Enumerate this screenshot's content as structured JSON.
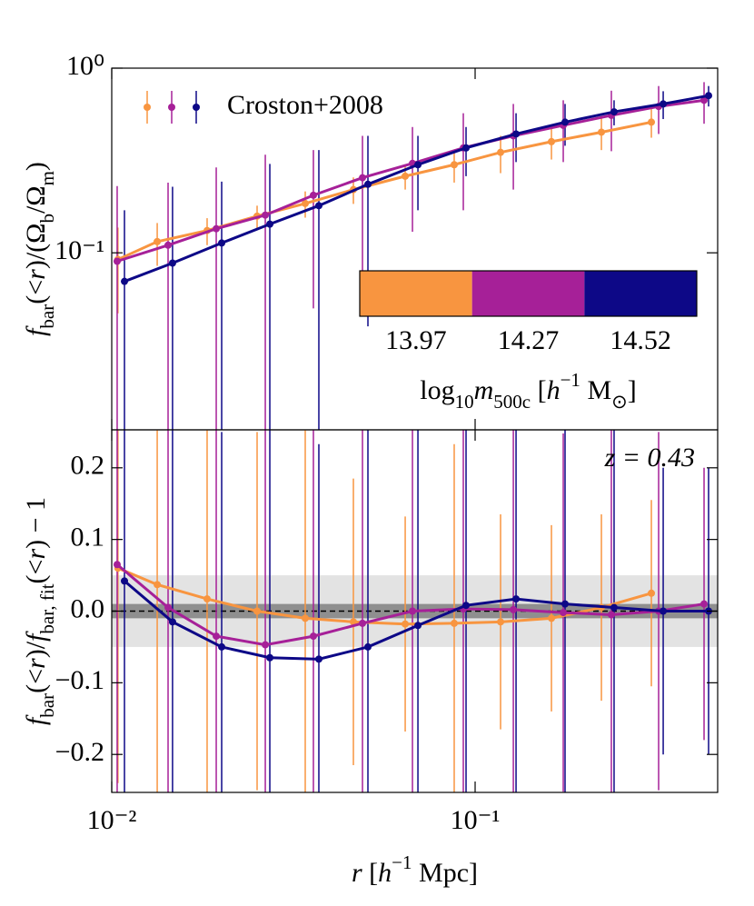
{
  "chart_data": [
    {
      "type": "line",
      "log_y": true,
      "log_x": true,
      "ylabel": [
        {
          "t": "f",
          "s": "i"
        },
        {
          "t": "bar",
          "s": "sub"
        },
        {
          "t": "(<"
        },
        {
          "t": "r",
          "s": "i"
        },
        {
          "t": ")/(Ω"
        },
        {
          "t": "b",
          "s": "sub"
        },
        {
          "t": "/Ω"
        },
        {
          "t": "m",
          "s": "sub"
        },
        {
          "t": ")"
        }
      ],
      "xlim": [
        0.01,
        0.465
      ],
      "ylim": [
        0.011,
        1
      ],
      "yticks": [
        {
          "value": 1,
          "label": "10⁰"
        },
        {
          "value": 0.1,
          "label": "10⁻¹"
        }
      ],
      "legend_label": "Croston+2008",
      "colorbar_label": [
        {
          "t": "log"
        },
        {
          "t": "10",
          "s": "sub"
        },
        {
          "t": "m",
          "s": "i"
        },
        {
          "t": "500c",
          "s": "sub"
        },
        {
          "t": " ["
        },
        {
          "t": "h",
          "s": "i"
        },
        {
          "t": "−1",
          "s": "sup"
        },
        {
          "t": " M"
        },
        {
          "t": "⊙",
          "s": "sub"
        },
        {
          "t": "]"
        }
      ],
      "series": [
        {
          "name": "13.97",
          "color": "#f89540",
          "x": [
            0.0104,
            0.01334,
            0.0183,
            0.02512,
            0.03408,
            0.04624,
            0.06421,
            0.08759,
            0.1175,
            0.1622,
            0.2226,
            0.3055
          ],
          "values": [
            0.092,
            0.115,
            0.132,
            0.158,
            0.185,
            0.22,
            0.26,
            0.3,
            0.35,
            0.4,
            0.45,
            0.51
          ],
          "errors": [
            0.045,
            0.03,
            0.022,
            0.022,
            0.03,
            0.036,
            0.04,
            0.06,
            0.08,
            0.08,
            0.09,
            0.09
          ]
        },
        {
          "name": "14.27",
          "color": "#a62098",
          "x": [
            0.01035,
            0.01429,
            0.01939,
            0.02646,
            0.03589,
            0.04898,
            0.06723,
            0.09279,
            0.1274,
            0.1748,
            0.2371,
            0.3199,
            0.4266
          ],
          "values": [
            0.09,
            0.11,
            0.135,
            0.16,
            0.205,
            0.255,
            0.305,
            0.37,
            0.43,
            0.49,
            0.555,
            0.62,
            0.67
          ],
          "errors": [
            0.14,
            0.13,
            0.155,
            0.18,
            0.155,
            0.175,
            0.175,
            0.2,
            0.21,
            0.18,
            0.2,
            0.18,
            0.17
          ]
        },
        {
          "name": "14.52",
          "color": "#0d0887",
          "x": [
            0.01084,
            0.0147,
            0.02007,
            0.02723,
            0.03715,
            0.0507,
            0.0696,
            0.09441,
            0.1296,
            0.1768,
            0.2412,
            0.3293,
            0.439
          ],
          "values": [
            0.07,
            0.088,
            0.113,
            0.143,
            0.18,
            0.235,
            0.3,
            0.37,
            0.44,
            0.51,
            0.58,
            0.64,
            0.71
          ],
          "errors": [
            0.1,
            0.14,
            0.13,
            0.16,
            0.18,
            0.195,
            0.13,
            0.11,
            0.13,
            0.13,
            0.09,
            0.11,
            0.09
          ]
        }
      ]
    },
    {
      "type": "line",
      "log_x": true,
      "ylabel": [
        {
          "t": "f",
          "s": "i"
        },
        {
          "t": "bar",
          "s": "sub"
        },
        {
          "t": "(<"
        },
        {
          "t": "r",
          "s": "i"
        },
        {
          "t": ")/"
        },
        {
          "t": "f",
          "s": "i"
        },
        {
          "t": "bar, fit",
          "s": "sub"
        },
        {
          "t": "(<"
        },
        {
          "t": "r",
          "s": "i"
        },
        {
          "t": ") − 1"
        }
      ],
      "xlabel": [
        {
          "t": "r",
          "s": "i"
        },
        {
          "t": " ["
        },
        {
          "t": "h",
          "s": "i"
        },
        {
          "t": "−1",
          "s": "sup"
        },
        {
          "t": " Mpc]"
        }
      ],
      "annotation": "z = 0.43",
      "xlim": [
        0.01,
        0.465
      ],
      "ylim": [
        -0.253,
        0.253
      ],
      "xticks": [
        {
          "value": 0.01,
          "label": "10⁻²"
        },
        {
          "value": 0.1,
          "label": "10⁻¹"
        }
      ],
      "yticks": [
        0.2,
        0.1,
        {
          "value": 0,
          "label": "0.0"
        },
        {
          "value": -0.1,
          "label": "−0.1"
        },
        {
          "value": -0.2,
          "label": "−0.2"
        }
      ],
      "band_outer": 0.05,
      "band_inner": 0.01,
      "series": [
        {
          "color": "#f89540",
          "x": [
            0.0104,
            0.01334,
            0.0183,
            0.02512,
            0.03408,
            0.04624,
            0.06421,
            0.08759,
            0.1175,
            0.1622,
            0.2226,
            0.3055
          ],
          "values": [
            0.06,
            0.037,
            0.017,
            0.0,
            -0.01,
            -0.015,
            -0.018,
            -0.017,
            -0.015,
            -0.01,
            0.005,
            0.025
          ],
          "errors": [
            0.3,
            0.3,
            0.3,
            0.25,
            0.3,
            0.2,
            0.15,
            0.25,
            0.15,
            0.13,
            0.13,
            0.13
          ]
        },
        {
          "color": "#a62098",
          "x": [
            0.01035,
            0.01429,
            0.01939,
            0.02646,
            0.03589,
            0.04898,
            0.06723,
            0.09279,
            0.1274,
            0.1748,
            0.2371,
            0.3199,
            0.4266
          ],
          "values": [
            0.065,
            0.005,
            -0.035,
            -0.047,
            -0.035,
            -0.017,
            0.0,
            0.003,
            0.002,
            -0.002,
            -0.005,
            0.0,
            0.01
          ],
          "errors": [
            0.35,
            0.3,
            0.3,
            0.35,
            0.3,
            0.3,
            0.35,
            0.3,
            0.3,
            0.25,
            0.3,
            0.25,
            0.19
          ]
        },
        {
          "color": "#0d0887",
          "x": [
            0.01084,
            0.0147,
            0.02007,
            0.02723,
            0.03715,
            0.0507,
            0.0696,
            0.09441,
            0.1296,
            0.1768,
            0.2412,
            0.3293,
            0.439
          ],
          "values": [
            0.042,
            -0.015,
            -0.05,
            -0.065,
            -0.067,
            -0.05,
            -0.02,
            0.008,
            0.017,
            0.01,
            0.005,
            0.0,
            0.0
          ],
          "errors": [
            0.3,
            0.35,
            0.3,
            0.35,
            0.3,
            0.35,
            0.35,
            0.3,
            0.35,
            0.3,
            0.3,
            0.2,
            0.2
          ]
        }
      ]
    }
  ]
}
